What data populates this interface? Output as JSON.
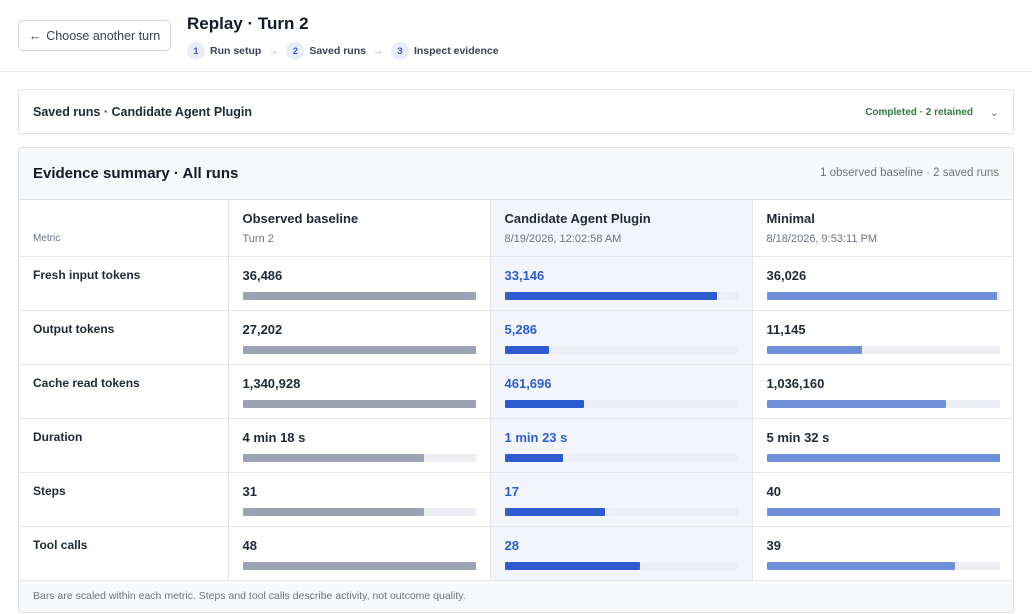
{
  "header": {
    "back_label": "Choose another turn",
    "title": "Replay · Turn 2",
    "steps": [
      {
        "num": "1",
        "label": "Run setup"
      },
      {
        "num": "2",
        "label": "Saved runs"
      },
      {
        "num": "3",
        "label": "Inspect evidence"
      }
    ]
  },
  "saved_runs": {
    "title": "Saved runs · Candidate Agent Plugin",
    "status": "Completed · 2 retained",
    "status_color": "#2f7a3c"
  },
  "evidence": {
    "title": "Evidence summary · All runs",
    "meta": "1 observed baseline · 2 saved runs",
    "metric_header": "Metric",
    "columns": [
      {
        "name": "Observed baseline",
        "sub": "Turn 2"
      },
      {
        "name": "Candidate Agent Plugin",
        "sub": "8/19/2026, 12:02:58 AM"
      },
      {
        "name": "Minimal",
        "sub": "8/18/2026, 9:53:11 PM"
      }
    ],
    "rows": [
      {
        "label": "Fresh input tokens",
        "values": [
          {
            "text": "36,486",
            "fill": 1.0
          },
          {
            "text": "33,146",
            "fill": 0.91
          },
          {
            "text": "36,026",
            "fill": 0.99
          }
        ]
      },
      {
        "label": "Output tokens",
        "values": [
          {
            "text": "27,202",
            "fill": 1.0
          },
          {
            "text": "5,286",
            "fill": 0.19
          },
          {
            "text": "11,145",
            "fill": 0.41
          }
        ]
      },
      {
        "label": "Cache read tokens",
        "values": [
          {
            "text": "1,340,928",
            "fill": 1.0
          },
          {
            "text": "461,696",
            "fill": 0.34
          },
          {
            "text": "1,036,160",
            "fill": 0.77
          }
        ]
      },
      {
        "label": "Duration",
        "values": [
          {
            "text": "4 min 18 s",
            "fill": 0.78
          },
          {
            "text": "1 min 23 s",
            "fill": 0.25
          },
          {
            "text": "5 min 32 s",
            "fill": 1.0
          }
        ]
      },
      {
        "label": "Steps",
        "values": [
          {
            "text": "31",
            "fill": 0.78
          },
          {
            "text": "17",
            "fill": 0.43
          },
          {
            "text": "40",
            "fill": 1.0
          }
        ]
      },
      {
        "label": "Tool calls",
        "values": [
          {
            "text": "48",
            "fill": 1.0
          },
          {
            "text": "28",
            "fill": 0.58
          },
          {
            "text": "39",
            "fill": 0.81
          }
        ]
      }
    ],
    "footnote": "Bars are scaled within each metric. Steps and tool calls describe activity, not outcome quality."
  },
  "colors": {
    "baseline_bar": "#9ba3b2",
    "candidate_bar": "#2d5bd0",
    "minimal_bar": "#6e8fd9",
    "candidate_text": "#2d5bd0"
  },
  "icons": {
    "back": "arrow-left-icon",
    "step_separator": "arrow-right-icon",
    "expand": "chevron-down-icon"
  }
}
